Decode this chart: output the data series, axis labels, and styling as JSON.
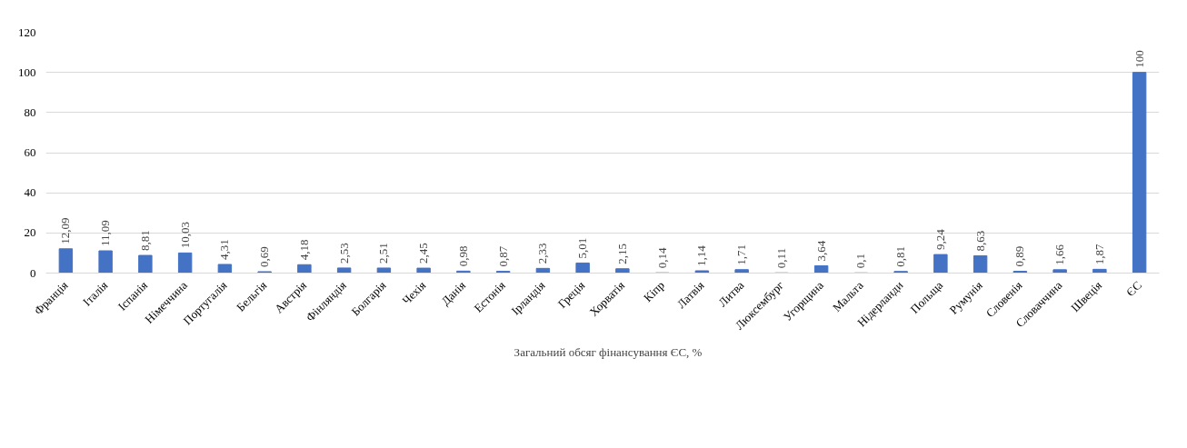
{
  "chart_data": {
    "type": "bar",
    "categories": [
      "Франція",
      "Італія",
      "Іспанія",
      "Німеччина",
      "Португалія",
      "Бельгія",
      "Австрія",
      "Фінляндія",
      "Болгарія",
      "Чехія",
      "Данія",
      "Естонія",
      "Ірландія",
      "Греція",
      "Хорватія",
      "Кіпр",
      "Латвія",
      "Литва",
      "Люксембург",
      "Угорщина",
      "Мальта",
      "Нідерланди",
      "Польща",
      "Румунія",
      "Словенія",
      "Словаччина",
      "Швеція",
      "ЄС"
    ],
    "series": [
      {
        "name": "Загальний обсяг фінансування ЄС, %",
        "color": "#4472c4",
        "values": [
          12.09,
          11.09,
          8.81,
          10.03,
          4.31,
          0.69,
          4.18,
          2.53,
          2.51,
          2.45,
          0.98,
          0.87,
          2.33,
          5.01,
          2.15,
          0.14,
          1.14,
          1.71,
          0.11,
          3.64,
          0.1,
          0.81,
          9.24,
          8.63,
          0.89,
          1.66,
          1.87,
          100
        ],
        "value_labels": [
          "12,09",
          "11,09",
          "8,81",
          "10,03",
          "4,31",
          "0,69",
          "4,18",
          "2,53",
          "2,51",
          "2,45",
          "0,98",
          "0,87",
          "2,33",
          "5,01",
          "2,15",
          "0,14",
          "1,14",
          "1,71",
          "0,11",
          "3,64",
          "0,1",
          "0,81",
          "9,24",
          "8,63",
          "0,89",
          "1,66",
          "1,87",
          "100"
        ]
      }
    ],
    "ylim": [
      0,
      120
    ],
    "yticks": [
      0,
      20,
      40,
      60,
      80,
      100,
      120
    ],
    "grid": "y",
    "legend": "bottom"
  }
}
